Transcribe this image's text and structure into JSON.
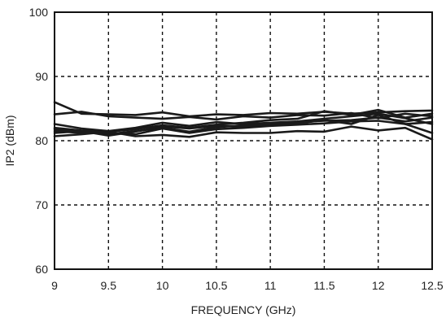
{
  "chart_data": {
    "type": "line",
    "xlabel": "FREQUENCY (GHz)",
    "ylabel": "IP2 (dBm)",
    "xlim": [
      9,
      12.5
    ],
    "ylim": [
      60,
      100
    ],
    "x_ticks": [
      "9",
      "9.5",
      "10",
      "10.5",
      "11",
      "11.5",
      "12",
      "12.5"
    ],
    "y_ticks": [
      "60",
      "70",
      "80",
      "90",
      "100"
    ],
    "grid": true,
    "legend": "none",
    "line_color": "#1a1a1a",
    "x": [
      9,
      9.25,
      9.5,
      9.75,
      10,
      10.25,
      10.5,
      10.75,
      11,
      11.25,
      11.5,
      11.75,
      12,
      12.25,
      12.5
    ],
    "series": [
      {
        "values": [
          86.0,
          84.2,
          84.1,
          84.0,
          84.4,
          83.8,
          84.1,
          84.0,
          84.3,
          84.2,
          84.5,
          84.2,
          84.4,
          84.6,
          84.7
        ]
      },
      {
        "values": [
          84.1,
          84.5,
          83.8,
          83.6,
          83.4,
          83.7,
          83.3,
          83.8,
          83.6,
          84.0,
          83.9,
          84.3,
          83.5,
          84.2,
          83.8
        ]
      },
      {
        "values": [
          82.6,
          81.9,
          81.5,
          82.0,
          82.8,
          82.3,
          82.9,
          82.6,
          82.8,
          83.0,
          83.4,
          83.8,
          84.2,
          83.5,
          82.6
        ]
      },
      {
        "values": [
          82.0,
          81.6,
          81.4,
          81.8,
          82.4,
          82.0,
          82.5,
          82.8,
          83.2,
          83.4,
          84.6,
          84.0,
          84.8,
          83.6,
          84.2
        ]
      },
      {
        "values": [
          81.8,
          81.4,
          81.0,
          81.5,
          82.0,
          81.4,
          82.1,
          82.4,
          82.6,
          82.9,
          83.1,
          83.2,
          83.6,
          83.0,
          83.6
        ]
      },
      {
        "values": [
          81.5,
          81.2,
          81.2,
          81.0,
          81.9,
          81.2,
          81.8,
          82.0,
          82.3,
          82.5,
          82.7,
          83.0,
          83.1,
          82.6,
          82.9
        ]
      },
      {
        "values": [
          81.2,
          81.5,
          80.8,
          81.4,
          82.2,
          81.9,
          82.3,
          82.2,
          82.5,
          82.7,
          83.2,
          82.6,
          84.0,
          82.6,
          81.2
        ]
      },
      {
        "values": [
          80.7,
          81.0,
          81.4,
          80.7,
          80.9,
          80.6,
          81.3,
          81.2,
          81.2,
          81.5,
          81.4,
          82.2,
          81.6,
          82.0,
          80.2
        ]
      }
    ]
  }
}
